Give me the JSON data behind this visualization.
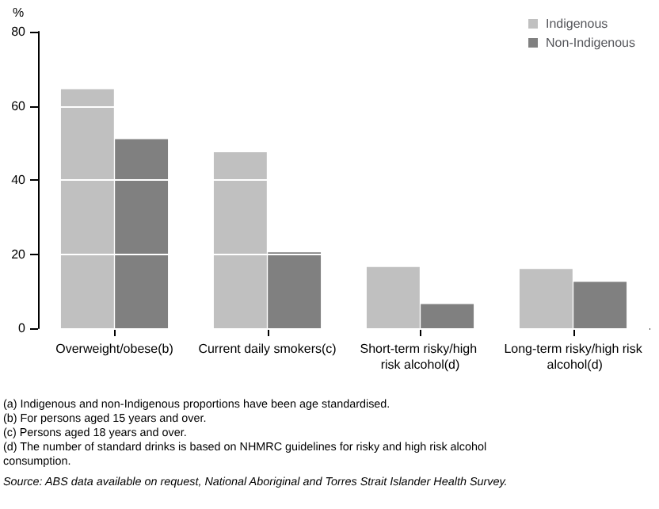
{
  "chart_data": {
    "type": "bar",
    "ylabel": "%",
    "categories": [
      "Overweight/obese(b)",
      "Current daily smokers(c)",
      "Short-term risky/high risk alcohol(d)",
      "Long-term risky/high risk alcohol(d)"
    ],
    "series": [
      {
        "name": "Indigenous",
        "color": "#c0c0c0",
        "values": [
          64.5,
          47.5,
          16.5,
          16
        ]
      },
      {
        "name": "Non-Indigenous",
        "color": "#808080",
        "values": [
          51,
          20.5,
          6.5,
          12.5
        ]
      }
    ],
    "ylim": [
      0,
      80
    ],
    "yticks": [
      0,
      20,
      40,
      60,
      80
    ],
    "grid": "y",
    "legend": "top right",
    "annotations": [
      "(a) Indigenous and non-Indigenous proportions have been age standardised.",
      "(b) For persons aged 15 years and over.",
      "(c) Persons aged 18 years and over.",
      "(d) The number of standard drinks is based on NHMRC guidelines for risky and high risk alcohol consumption.",
      "Source: ABS data available on request, National Aboriginal and Torres Strait Islander Health Survey."
    ]
  }
}
